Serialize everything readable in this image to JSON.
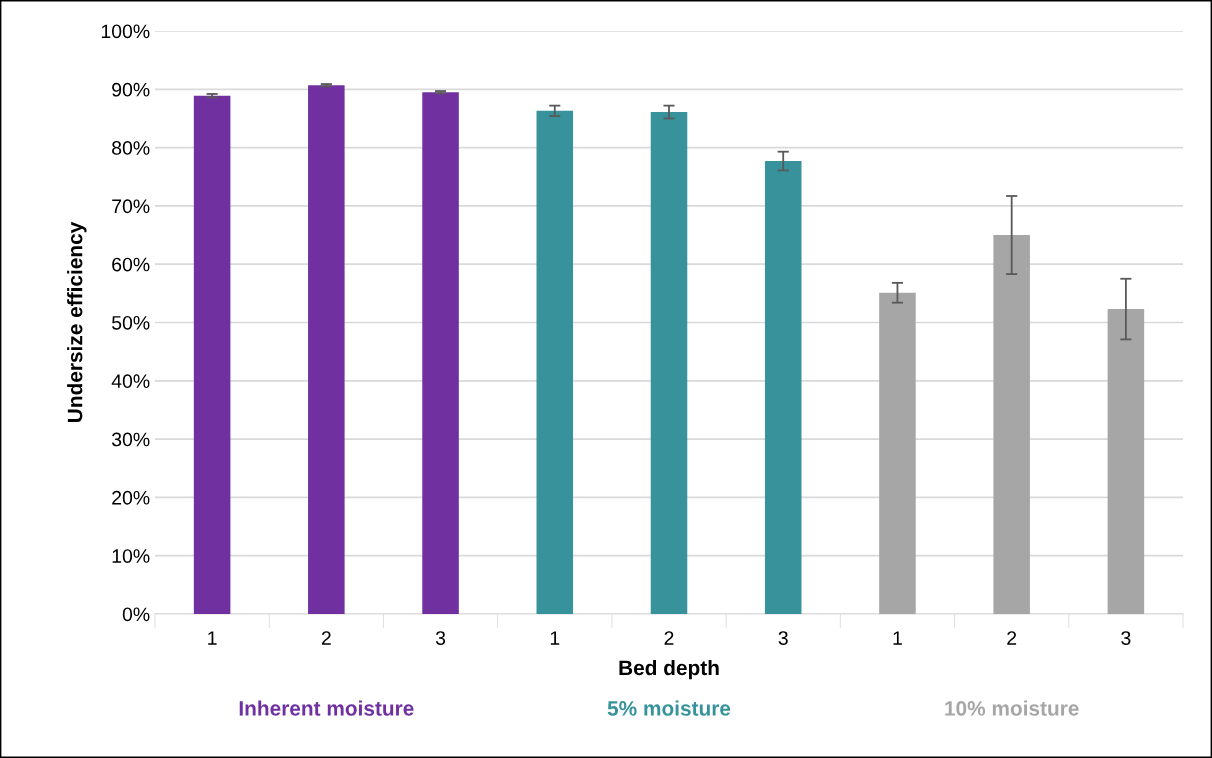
{
  "chart_data": {
    "type": "bar",
    "xlabel": "Bed depth",
    "ylabel": "Undersize efficiency",
    "categories": [
      "1",
      "2",
      "3",
      "1",
      "2",
      "3",
      "1",
      "2",
      "3"
    ],
    "values": [
      88.9,
      90.7,
      89.5,
      86.3,
      86.1,
      77.7,
      55.1,
      65.0,
      52.3
    ],
    "errors": [
      0.3,
      0.2,
      0.2,
      0.9,
      1.1,
      1.6,
      1.7,
      6.7,
      5.2
    ],
    "colors": [
      "#7030a0",
      "#7030a0",
      "#7030a0",
      "#37929b",
      "#37929b",
      "#37929b",
      "#a6a6a6",
      "#a6a6a6",
      "#a6a6a6"
    ],
    "annotations": [
      "Inherent moisture",
      "5% moisture",
      "10% moisture"
    ],
    "ylim": [
      0,
      100
    ],
    "yticks": [
      {
        "value": 0,
        "label": "0%"
      },
      {
        "value": 10,
        "label": "10%"
      },
      {
        "value": 20,
        "label": "20%"
      },
      {
        "value": 30,
        "label": "30%"
      },
      {
        "value": 40,
        "label": "40%"
      },
      {
        "value": 50,
        "label": "50%"
      },
      {
        "value": 60,
        "label": "60%"
      },
      {
        "value": 70,
        "label": "70%"
      },
      {
        "value": 80,
        "label": "80%"
      },
      {
        "value": 90,
        "label": "90%"
      },
      {
        "value": 100,
        "label": "100%"
      }
    ],
    "grid": "y"
  }
}
